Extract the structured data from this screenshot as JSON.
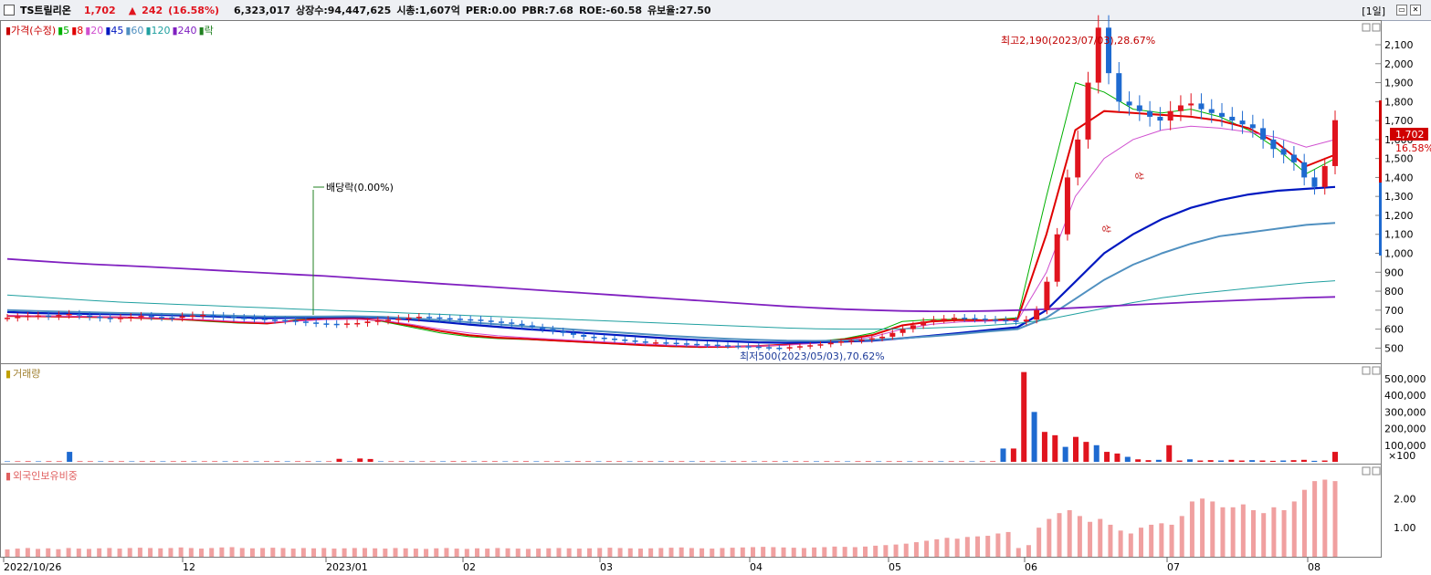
{
  "header": {
    "name": "TS트릴리온",
    "price": "1,702",
    "change_arrow": "▲",
    "change": "242",
    "change_pct": "(16.58%)",
    "volume": "6,323,017",
    "listed": "상장수:94,447,625",
    "marketcap": "시총:1,607억",
    "per": "PER:0.00",
    "pbr": "PBR:7.68",
    "roe": "ROE:-60.58",
    "float": "유보율:27.50",
    "period": "[1일]",
    "win_icons": [
      "restore-icon",
      "close-icon"
    ]
  },
  "price_panel": {
    "legend": [
      {
        "text": "가격(수정)",
        "color": "#c80000"
      },
      {
        "text": "5",
        "color": "#00b000"
      },
      {
        "text": "8",
        "color": "#e00000"
      },
      {
        "text": "20",
        "color": "#d050d0"
      },
      {
        "text": "45",
        "color": "#0018c0"
      },
      {
        "text": "60",
        "color": "#5090c0"
      },
      {
        "text": "120",
        "color": "#20a0a0"
      },
      {
        "text": "240",
        "color": "#8020c0"
      },
      {
        "text": "락",
        "color": "#208020"
      }
    ],
    "high_annotation": "최고2,190(2023/07/03),28.67%",
    "low_annotation": "최저500(2023/05/03),70.62%",
    "dividend_annotation": "배당락(0.00%)",
    "limit_up_1": "상",
    "limit_up_2": "상",
    "price_tag": "1,702",
    "pct_tag": "16.58%"
  },
  "volume_panel": {
    "legend": "거래량"
  },
  "foreign_panel": {
    "legend": "외국인보유비중"
  },
  "x_labels": [
    "2022/10/26",
    "12",
    "2023/01",
    "02",
    "03",
    "04",
    "05",
    "06",
    "07",
    "08"
  ],
  "colors": {
    "up": "#e0141e",
    "down": "#1e6ad0",
    "bar": "#f0a0a0"
  },
  "chart_data": [
    {
      "type": "candlestick",
      "title": "가격(수정)",
      "y_ticks": [
        "2,100",
        "2,000",
        "1,900",
        "1,800",
        "1,700",
        "1,600",
        "1,500",
        "1,400",
        "1,300",
        "1,200",
        "1,100",
        "1,000",
        "900",
        "800",
        "700",
        "600",
        "500"
      ],
      "ylim": [
        420,
        2230
      ],
      "x": [
        "2022/10/26",
        "12",
        "2023/01",
        "02",
        "03",
        "04",
        "05",
        "06",
        "07",
        "08"
      ],
      "close_series": [
        660,
        665,
        670,
        672,
        668,
        675,
        680,
        672,
        665,
        660,
        655,
        660,
        665,
        670,
        665,
        662,
        660,
        668,
        672,
        675,
        670,
        665,
        660,
        658,
        655,
        650,
        648,
        645,
        640,
        635,
        630,
        628,
        625,
        630,
        632,
        640,
        645,
        650,
        655,
        660,
        665,
        662,
        658,
        655,
        652,
        650,
        645,
        640,
        635,
        628,
        620,
        610,
        600,
        590,
        580,
        570,
        560,
        555,
        550,
        545,
        540,
        535,
        530,
        530,
        528,
        525,
        522,
        520,
        518,
        515,
        512,
        510,
        508,
        505,
        502,
        500,
        505,
        510,
        515,
        520,
        528,
        535,
        540,
        545,
        552,
        560,
        580,
        600,
        620,
        640,
        650,
        655,
        660,
        658,
        655,
        650,
        648,
        645,
        640,
        650,
        700,
        850,
        1100,
        1400,
        1600,
        1900,
        2190,
        1950,
        1800,
        1780,
        1750,
        1720,
        1700,
        1750,
        1780,
        1790,
        1760,
        1740,
        1720,
        1700,
        1680,
        1660,
        1600,
        1550,
        1520,
        1480,
        1400,
        1350,
        1460,
        1702
      ],
      "ma": [
        {
          "name": "5",
          "values": [
            668,
            666,
            664,
            662,
            660,
            655,
            650,
            640,
            632,
            628,
            650,
            658,
            660,
            640,
            610,
            580,
            560,
            550,
            545,
            538,
            530,
            522,
            515,
            508,
            504,
            506,
            512,
            520,
            535,
            550,
            580,
            640,
            650,
            652,
            648,
            660,
            1300,
            1900,
            1850,
            1760,
            1740,
            1760,
            1720,
            1650,
            1550,
            1420,
            1500
          ]
        },
        {
          "name": "8",
          "values": [
            670,
            668,
            666,
            664,
            662,
            658,
            652,
            645,
            636,
            630,
            645,
            655,
            658,
            645,
            618,
            590,
            568,
            555,
            548,
            540,
            532,
            524,
            516,
            510,
            506,
            507,
            511,
            518,
            530,
            545,
            570,
            620,
            640,
            648,
            646,
            652,
            1100,
            1650,
            1750,
            1740,
            1730,
            1720,
            1700,
            1660,
            1580,
            1460,
            1520
          ]
        },
        {
          "name": "20",
          "values": [
            672,
            670,
            668,
            666,
            664,
            660,
            655,
            648,
            640,
            635,
            642,
            650,
            652,
            646,
            625,
            600,
            580,
            565,
            555,
            546,
            538,
            530,
            522,
            515,
            510,
            509,
            511,
            516,
            525,
            538,
            560,
            600,
            625,
            638,
            642,
            646,
            900,
            1300,
            1500,
            1600,
            1650,
            1670,
            1660,
            1640,
            1610,
            1560,
            1600
          ]
        },
        {
          "name": "45",
          "values": [
            690,
            685,
            682,
            680,
            678,
            676,
            672,
            668,
            662,
            658,
            660,
            662,
            664,
            660,
            650,
            638,
            624,
            612,
            600,
            590,
            580,
            570,
            560,
            550,
            542,
            536,
            530,
            528,
            530,
            534,
            540,
            552,
            565,
            580,
            595,
            610,
            700,
            850,
            1000,
            1100,
            1180,
            1240,
            1280,
            1310,
            1330,
            1340,
            1350
          ]
        },
        {
          "name": "60",
          "values": [
            700,
            696,
            692,
            688,
            685,
            682,
            678,
            674,
            670,
            666,
            666,
            667,
            668,
            665,
            657,
            648,
            636,
            625,
            614,
            604,
            594,
            584,
            574,
            564,
            556,
            549,
            543,
            539,
            538,
            540,
            544,
            552,
            562,
            574,
            588,
            600,
            660,
            760,
            860,
            940,
            1000,
            1050,
            1090,
            1110,
            1130,
            1150,
            1160
          ]
        },
        {
          "name": "120",
          "values": [
            780,
            770,
            760,
            750,
            742,
            736,
            730,
            724,
            718,
            712,
            706,
            700,
            695,
            690,
            684,
            678,
            672,
            666,
            660,
            654,
            648,
            642,
            636,
            630,
            624,
            618,
            612,
            606,
            602,
            600,
            600,
            602,
            606,
            612,
            620,
            630,
            650,
            680,
            710,
            740,
            765,
            785,
            800,
            815,
            830,
            845,
            855
          ]
        },
        {
          "name": "240",
          "values": [
            970,
            960,
            950,
            942,
            935,
            928,
            920,
            912,
            904,
            896,
            888,
            880,
            870,
            860,
            850,
            840,
            830,
            820,
            810,
            800,
            790,
            780,
            770,
            760,
            750,
            740,
            730,
            720,
            712,
            705,
            700,
            696,
            694,
            694,
            696,
            700,
            705,
            712,
            720,
            728,
            735,
            742,
            748,
            754,
            760,
            766,
            770
          ]
        }
      ]
    },
    {
      "type": "bar",
      "title": "거래량",
      "y_ticks": [
        "500,000",
        "400,000",
        "300,000",
        "200,000",
        "100,000",
        "×100"
      ],
      "ylim": [
        0,
        560000
      ],
      "values": [
        3000,
        2800,
        3200,
        3000,
        3100,
        2900,
        60000,
        3000,
        2900,
        3100,
        3000,
        2800,
        2900,
        3000,
        3200,
        3000,
        2900,
        3100,
        3000,
        2800,
        2900,
        3100,
        3000,
        2800,
        2900,
        3000,
        3200,
        3000,
        2900,
        3100,
        3000,
        2800,
        18000,
        3000,
        20000,
        17000,
        3000,
        2900,
        3100,
        3000,
        2800,
        2900,
        3000,
        3200,
        3000,
        2900,
        3100,
        3000,
        2800,
        2900,
        3100,
        3000,
        2800,
        2900,
        3000,
        3200,
        3000,
        2900,
        3100,
        3000,
        2800,
        2900,
        3000,
        3200,
        3000,
        2900,
        3100,
        3000,
        2800,
        2900,
        3100,
        3000,
        2800,
        2900,
        3000,
        3200,
        3000,
        2900,
        3100,
        3000,
        2800,
        2900,
        3000,
        3200,
        3000,
        2900,
        3100,
        3000,
        2800,
        2900,
        3100,
        3000,
        2800,
        2900,
        3000,
        3200,
        80000,
        80000,
        540000,
        300000,
        180000,
        160000,
        90000,
        150000,
        120000,
        100000,
        60000,
        50000,
        30000,
        15000,
        10000,
        12000,
        100000,
        8000,
        15000,
        8000,
        10000,
        8000,
        12000,
        8000,
        10000,
        8000,
        6000,
        8000,
        10000,
        12000,
        6000,
        8000,
        60000
      ],
      "colors": "mixed up/down"
    },
    {
      "type": "bar",
      "title": "외국인보유비중",
      "y_ticks": [
        "2.00",
        "1.00"
      ],
      "ylim": [
        0,
        3.2
      ],
      "values": [
        0.25,
        0.28,
        0.3,
        0.27,
        0.29,
        0.26,
        0.3,
        0.28,
        0.27,
        0.29,
        0.3,
        0.28,
        0.3,
        0.31,
        0.3,
        0.29,
        0.3,
        0.32,
        0.3,
        0.28,
        0.3,
        0.32,
        0.33,
        0.3,
        0.29,
        0.3,
        0.31,
        0.3,
        0.28,
        0.3,
        0.29,
        0.3,
        0.28,
        0.29,
        0.3,
        0.3,
        0.29,
        0.28,
        0.3,
        0.29,
        0.28,
        0.27,
        0.29,
        0.3,
        0.28,
        0.27,
        0.29,
        0.28,
        0.3,
        0.29,
        0.28,
        0.27,
        0.28,
        0.29,
        0.3,
        0.29,
        0.28,
        0.29,
        0.3,
        0.31,
        0.3,
        0.29,
        0.28,
        0.29,
        0.3,
        0.31,
        0.32,
        0.3,
        0.29,
        0.28,
        0.3,
        0.31,
        0.32,
        0.33,
        0.34,
        0.33,
        0.32,
        0.31,
        0.3,
        0.32,
        0.33,
        0.35,
        0.34,
        0.33,
        0.35,
        0.38,
        0.4,
        0.42,
        0.45,
        0.5,
        0.55,
        0.6,
        0.65,
        0.62,
        0.68,
        0.7,
        0.72,
        0.8,
        0.85,
        0.3,
        0.4,
        1.0,
        1.3,
        1.5,
        1.6,
        1.4,
        1.2,
        1.3,
        1.1,
        0.9,
        0.8,
        1.0,
        1.1,
        1.15,
        1.1,
        1.4,
        1.9,
        2.0,
        1.9,
        1.7,
        1.7,
        1.8,
        1.6,
        1.5,
        1.7,
        1.6,
        1.9,
        2.3,
        2.6,
        2.65,
        2.6
      ]
    }
  ]
}
